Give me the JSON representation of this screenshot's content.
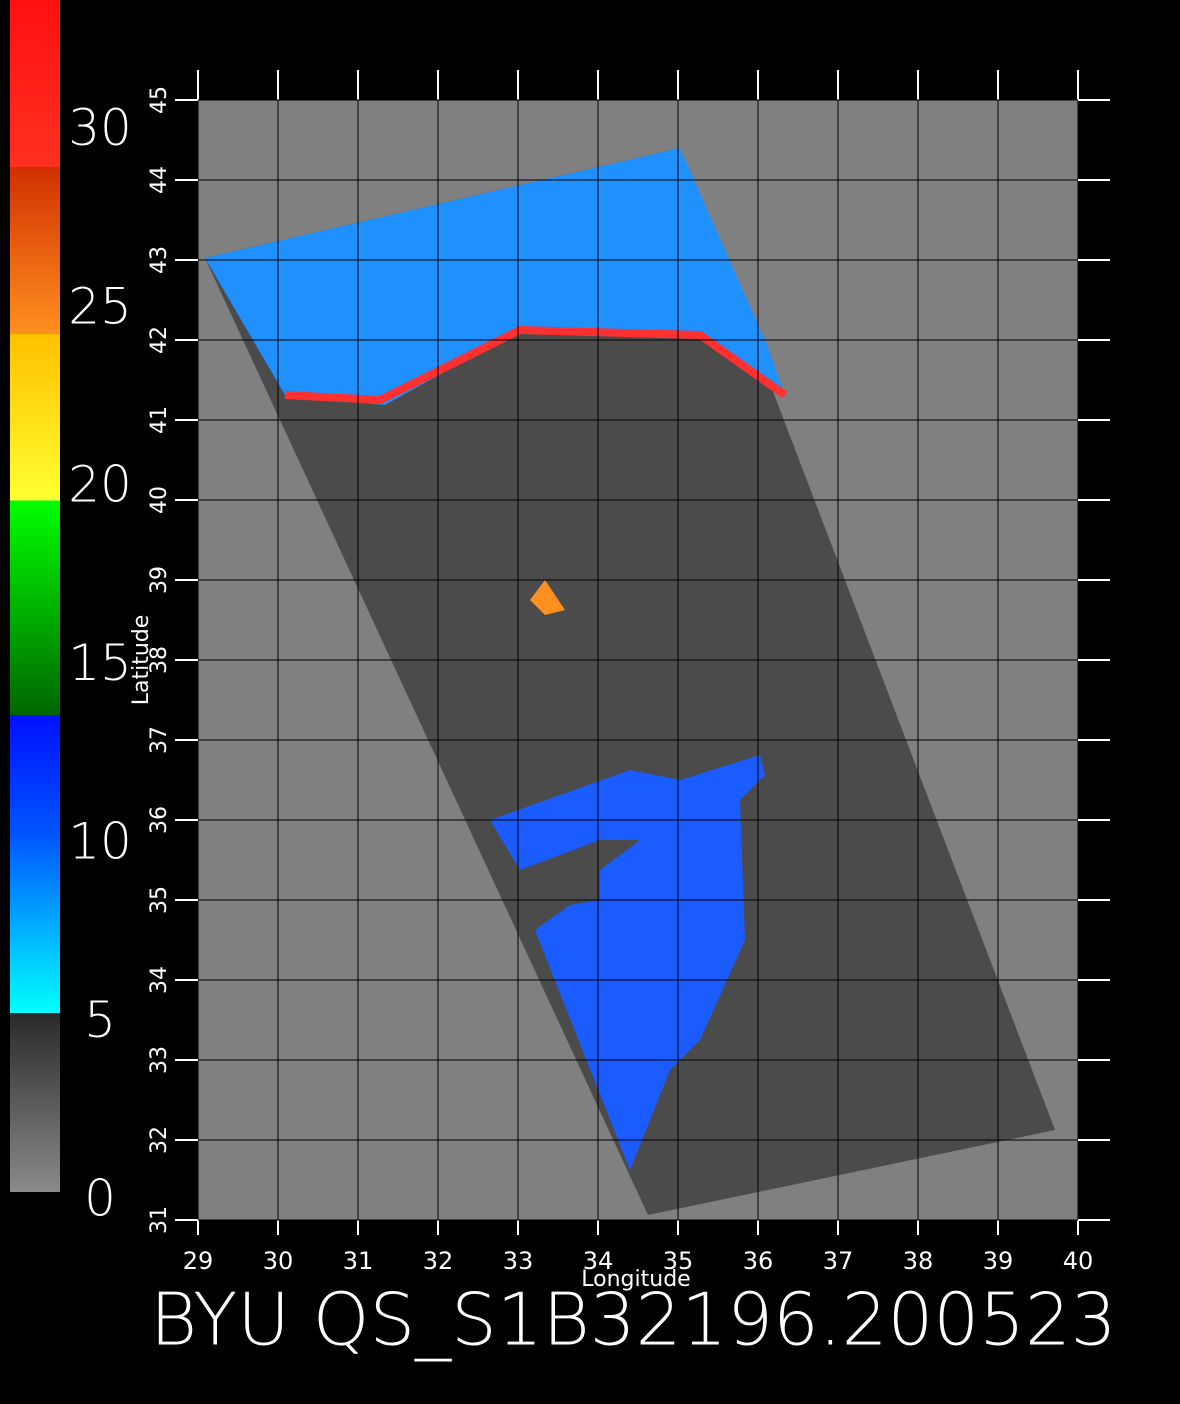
{
  "title": "BYU QS_S1B32196.200523",
  "colorbar": {
    "lim": [
      0,
      33.4
    ],
    "ticks": [
      0,
      5,
      10,
      15,
      20,
      25,
      30
    ]
  },
  "map": {
    "xlabel": "Longitude",
    "ylabel": "Latitude",
    "xlim": [
      29,
      40
    ],
    "ylim": [
      31,
      45
    ],
    "xticks": [
      29,
      30,
      31,
      32,
      33,
      34,
      35,
      36,
      37,
      38,
      39,
      40
    ],
    "yticks": [
      31,
      32,
      33,
      34,
      35,
      36,
      37,
      38,
      39,
      40,
      41,
      42,
      43,
      44,
      45
    ]
  }
}
